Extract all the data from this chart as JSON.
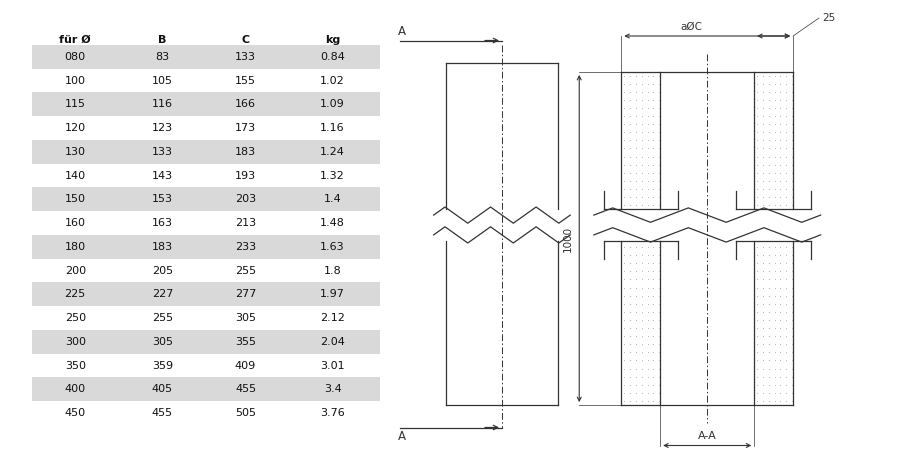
{
  "table_headers": [
    "für Ø",
    "B",
    "C",
    "kg"
  ],
  "table_rows": [
    [
      "080",
      "83",
      "133",
      "0.84"
    ],
    [
      "100",
      "105",
      "155",
      "1.02"
    ],
    [
      "115",
      "116",
      "166",
      "1.09"
    ],
    [
      "120",
      "123",
      "173",
      "1.16"
    ],
    [
      "130",
      "133",
      "183",
      "1.24"
    ],
    [
      "140",
      "143",
      "193",
      "1.32"
    ],
    [
      "150",
      "153",
      "203",
      "1.4"
    ],
    [
      "160",
      "163",
      "213",
      "1.48"
    ],
    [
      "180",
      "183",
      "233",
      "1.63"
    ],
    [
      "200",
      "205",
      "255",
      "1.8"
    ],
    [
      "225",
      "227",
      "277",
      "1.97"
    ],
    [
      "250",
      "255",
      "305",
      "2.12"
    ],
    [
      "300",
      "305",
      "355",
      "2.04"
    ],
    [
      "350",
      "359",
      "409",
      "3.01"
    ],
    [
      "400",
      "405",
      "455",
      "3.4"
    ],
    [
      "450",
      "455",
      "505",
      "3.76"
    ]
  ],
  "shaded_rows": [
    0,
    2,
    4,
    6,
    8,
    10,
    12,
    14
  ],
  "shade_color": "#d9d9d9",
  "line_color": "#333333",
  "bg_color": "#ffffff"
}
